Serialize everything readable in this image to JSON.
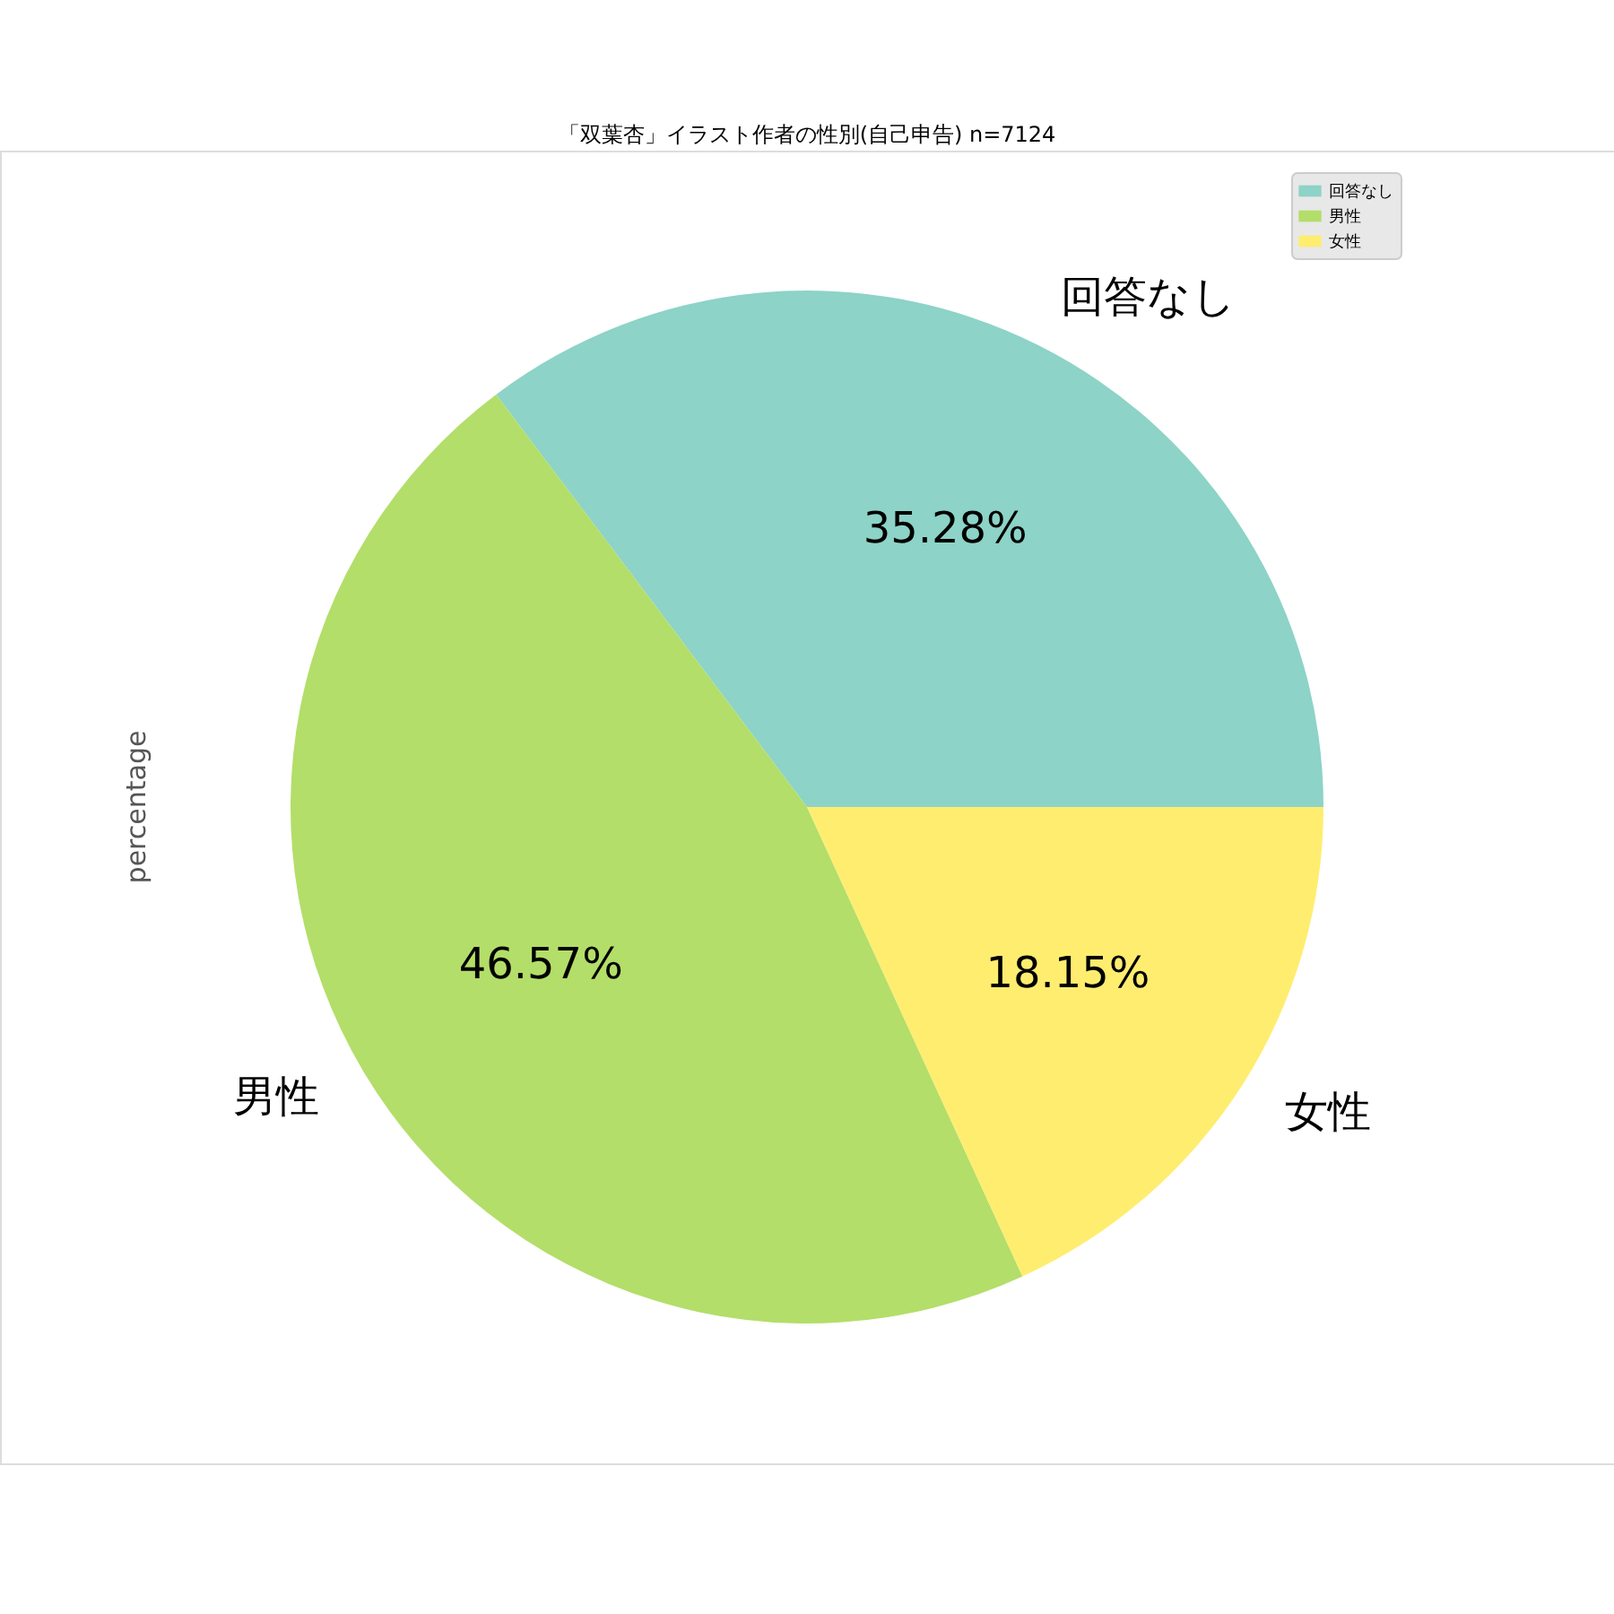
{
  "chart_data": {
    "type": "pie",
    "title": "「双葉杏」イラスト作者の性別(自己申告) n=7124",
    "ylabel": "percentage",
    "categories": [
      "回答なし",
      "男性",
      "女性"
    ],
    "values": [
      35.28,
      46.57,
      18.15
    ],
    "colors": [
      "#8dd3c7",
      "#b3de69",
      "#ffed6f"
    ],
    "value_labels": [
      "35.28%",
      "46.57%",
      "18.15%"
    ],
    "legend": "top right"
  }
}
